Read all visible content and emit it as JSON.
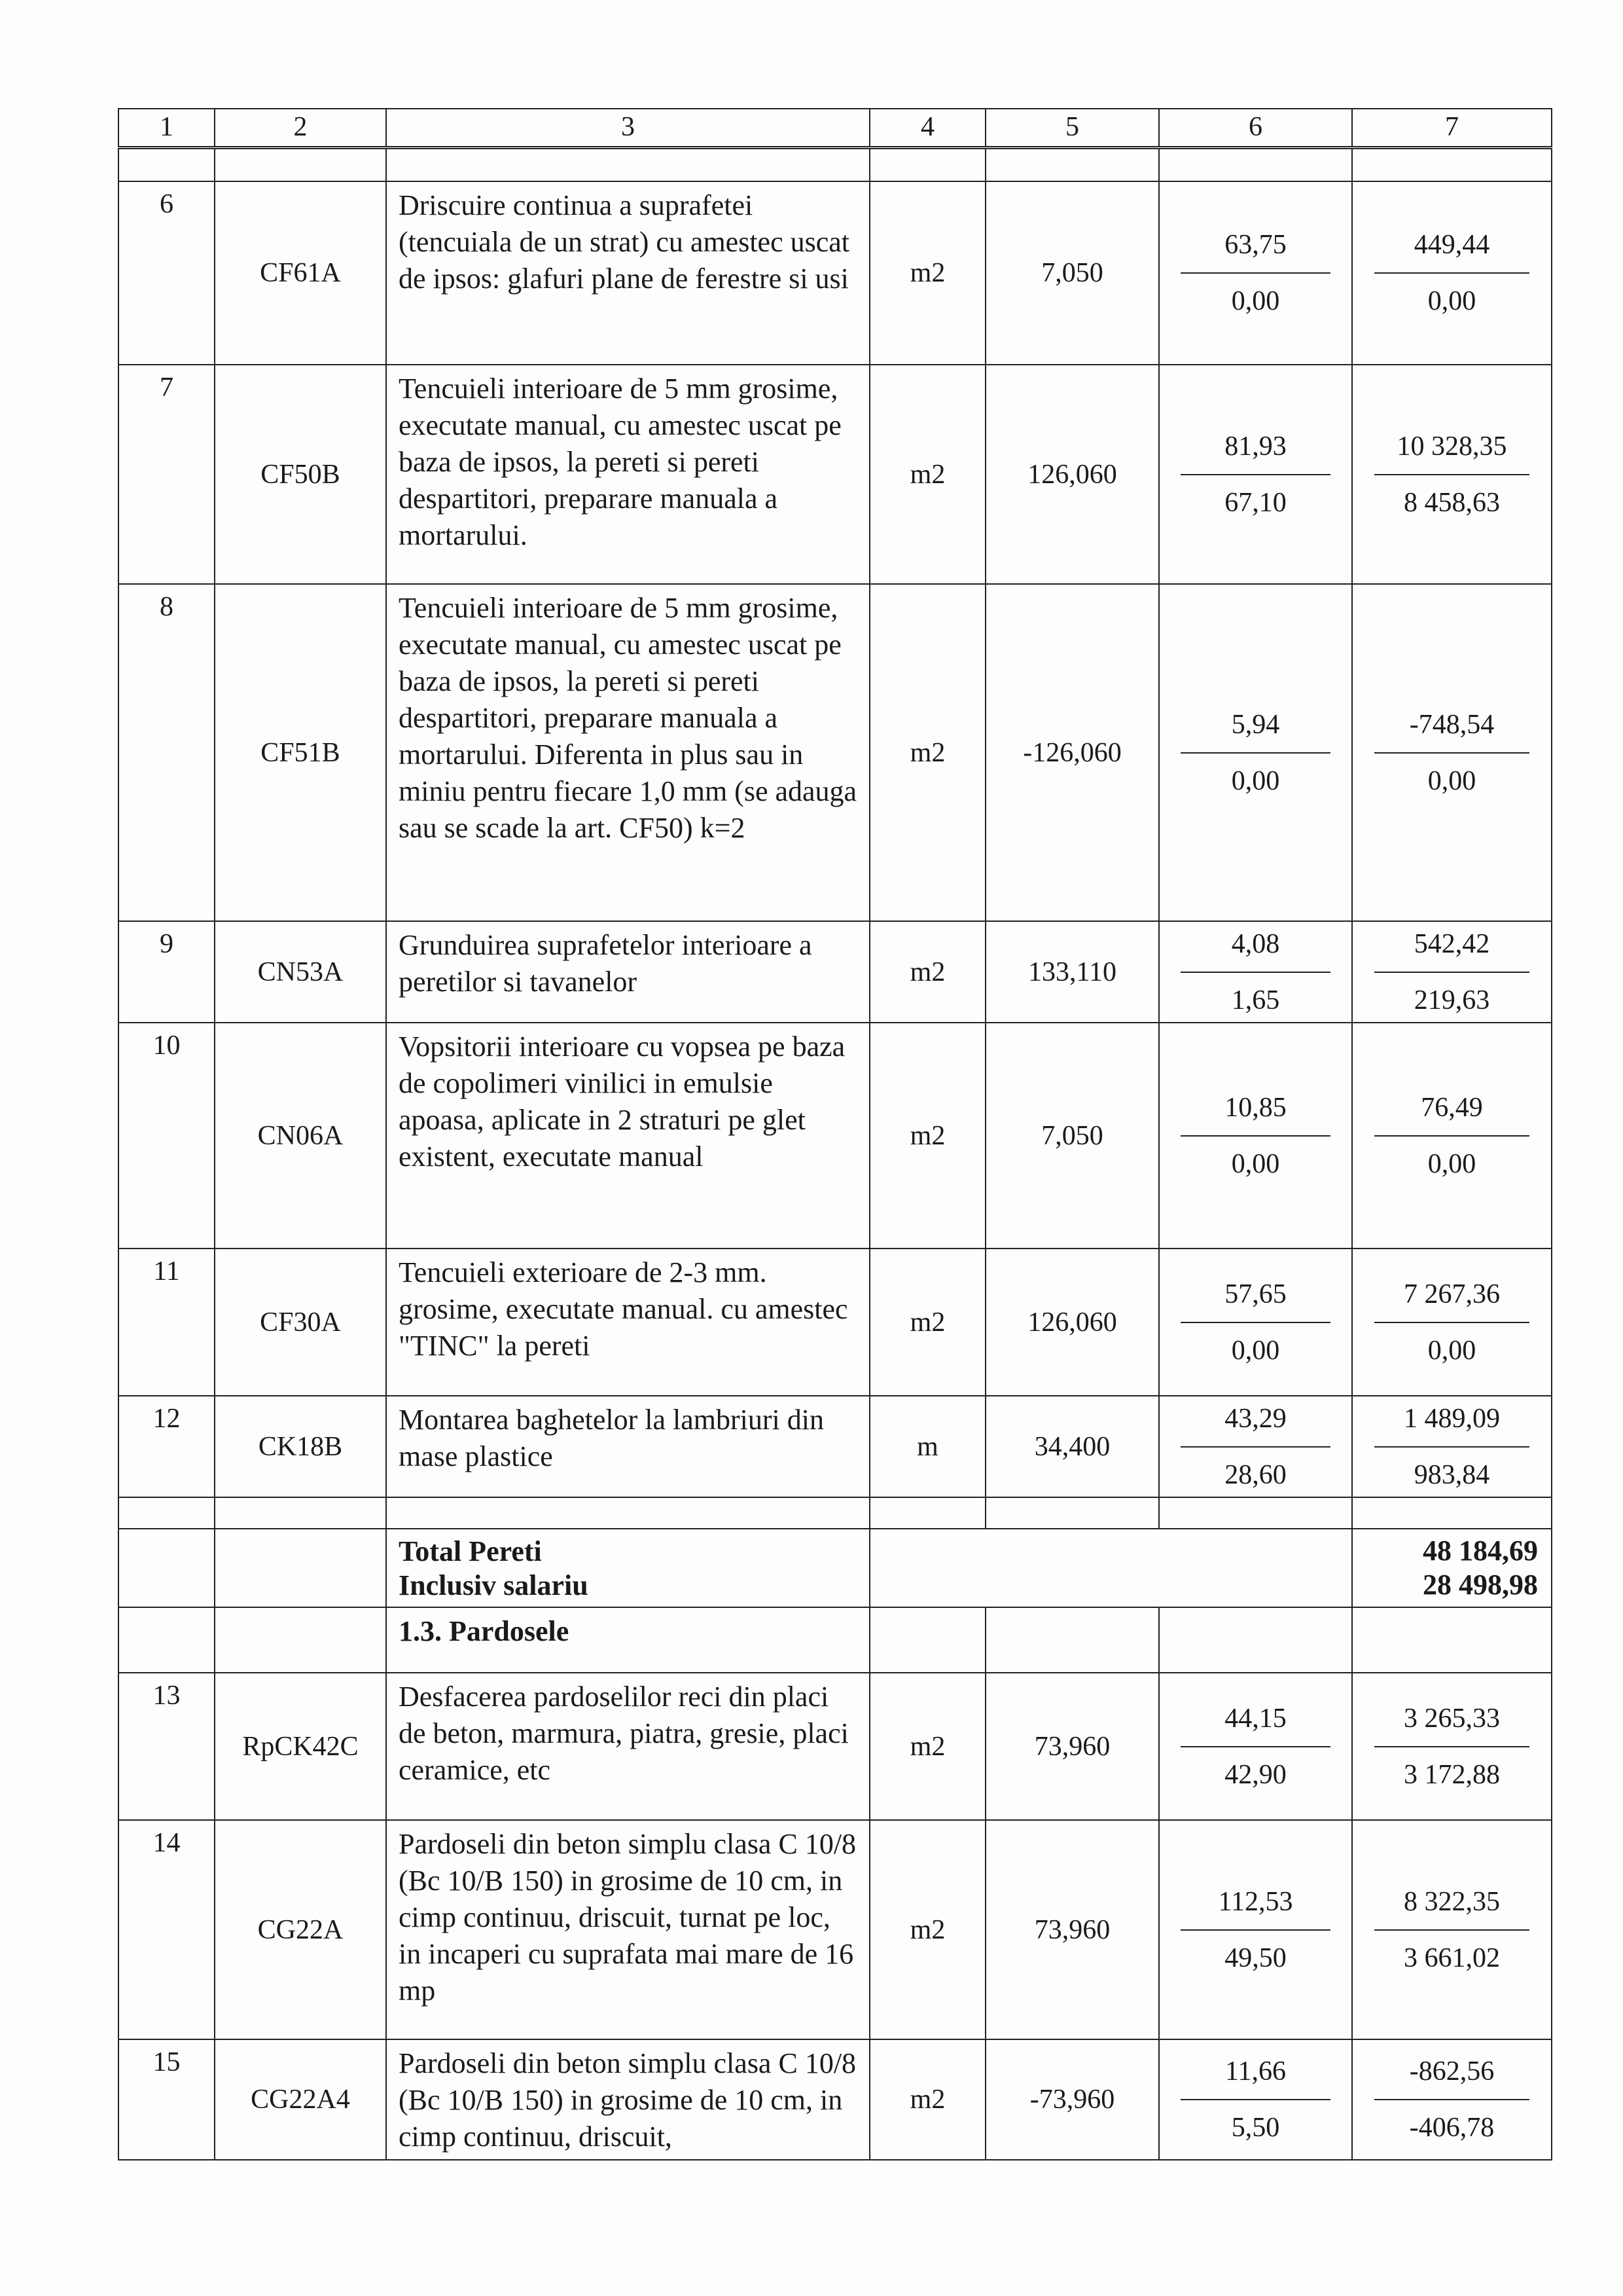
{
  "header": [
    "1",
    "2",
    "3",
    "4",
    "5",
    "6",
    "7"
  ],
  "rows_a": [
    {
      "nr": "6",
      "code": "CF61A",
      "desc": "Driscuire continua a suprafetei (tencuiala de un strat) cu amestec uscat de ipsos: glafuri plane de ferestre si usi",
      "um": "m2",
      "qty": "7,050",
      "price_top": "63,75",
      "price_bottom": "0,00",
      "total_top": "449,44",
      "total_bottom": "0,00"
    },
    {
      "nr": "7",
      "code": "CF50B",
      "desc": "Tencuieli interioare de 5 mm grosime, executate manual, cu amestec uscat pe baza de ipsos, la pereti si pereti despartitori, preparare manuala a mortarului.",
      "um": "m2",
      "qty": "126,060",
      "price_top": "81,93",
      "price_bottom": "67,10",
      "total_top": "10 328,35",
      "total_bottom": "8 458,63"
    },
    {
      "nr": "8",
      "code": "CF51B",
      "desc": "Tencuieli interioare de 5 mm grosime, executate manual, cu amestec uscat pe baza de ipsos, la pereti si pereti despartitori, preparare manuala a mortarului. Diferenta in plus sau in miniu pentru fiecare 1,0 mm (se adauga sau se scade la art. CF50) k=2",
      "um": "m2",
      "qty": "-126,060",
      "price_top": "5,94",
      "price_bottom": "0,00",
      "total_top": "-748,54",
      "total_bottom": "0,00"
    },
    {
      "nr": "9",
      "code": "CN53A",
      "desc": "Grunduirea suprafetelor interioare a peretilor si tavanelor",
      "um": "m2",
      "qty": "133,110",
      "price_top": "4,08",
      "price_bottom": "1,65",
      "total_top": "542,42",
      "total_bottom": "219,63"
    },
    {
      "nr": "10",
      "code": "CN06A",
      "desc": "Vopsitorii interioare cu vopsea pe baza de copolimeri vinilici in emulsie apoasa,  aplicate in 2 straturi pe glet existent, executate manual",
      "um": "m2",
      "qty": "7,050",
      "price_top": "10,85",
      "price_bottom": "0,00",
      "total_top": "76,49",
      "total_bottom": "0,00"
    },
    {
      "nr": "11",
      "code": "CF30A",
      "desc": "Tencuieli exterioare de 2-3 mm. grosime, executate manual. cu amestec \"TINC\" la pereti",
      "um": "m2",
      "qty": "126,060",
      "price_top": "57,65",
      "price_bottom": "0,00",
      "total_top": "7 267,36",
      "total_bottom": "0,00"
    },
    {
      "nr": "12",
      "code": "CK18B",
      "desc": "Montarea baghetelor la lambriuri din mase plastice",
      "um": "m",
      "qty": "34,400",
      "price_top": "43,29",
      "price_bottom": "28,60",
      "total_top": "1 489,09",
      "total_bottom": "983,84"
    }
  ],
  "total": {
    "label": "Total Pereti",
    "label2": "Inclusiv salariu",
    "value": "48 184,69",
    "value2": "28 498,98"
  },
  "section": "1.3. Pardosele",
  "rows_b": [
    {
      "nr": "13",
      "code": "RpCK42C",
      "desc": "Desfacerea pardoselilor reci din placi de beton, marmura, piatra, gresie, placi ceramice, etc",
      "um": "m2",
      "qty": "73,960",
      "price_top": "44,15",
      "price_bottom": "42,90",
      "total_top": "3 265,33",
      "total_bottom": "3 172,88"
    },
    {
      "nr": "14",
      "code": "CG22A",
      "desc": "Pardoseli din beton simplu clasa C 10/8 (Bc 10/B 150) in grosime de 10 cm, in cimp continuu, driscuit, turnat pe loc, in incaperi cu suprafata mai mare de 16 mp",
      "um": "m2",
      "qty": "73,960",
      "price_top": "112,53",
      "price_bottom": "49,50",
      "total_top": "8 322,35",
      "total_bottom": "3 661,02"
    },
    {
      "nr": "15",
      "code": "CG22A4",
      "desc": "Pardoseli din beton simplu clasa C 10/8 (Bc 10/B 150) in grosime de 10 cm, in cimp continuu, driscuit,",
      "um": "m2",
      "qty": "-73,960",
      "price_top": "11,66",
      "price_bottom": "5,50",
      "total_top": "-862,56",
      "total_bottom": "-406,78"
    }
  ]
}
